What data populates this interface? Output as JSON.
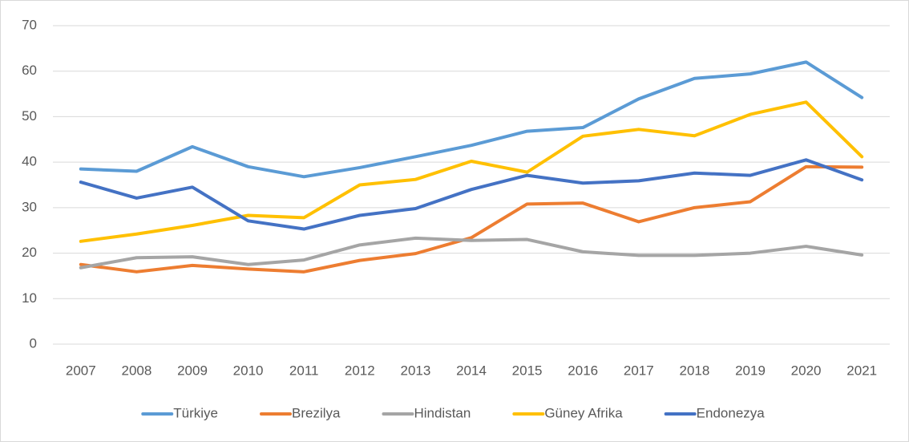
{
  "chart_data": {
    "type": "line",
    "categories": [
      "2007",
      "2008",
      "2009",
      "2010",
      "2011",
      "2012",
      "2013",
      "2014",
      "2015",
      "2016",
      "2017",
      "2018",
      "2019",
      "2020",
      "2021"
    ],
    "series": [
      {
        "name": "Türkiye",
        "color": "#5B9BD5",
        "values": [
          38.5,
          38,
          43.4,
          39,
          36.8,
          38.8,
          41.2,
          43.7,
          46.8,
          47.6,
          53.9,
          58.4,
          59.4,
          62,
          54.2
        ]
      },
      {
        "name": "Brezilya",
        "color": "#ED7D31",
        "values": [
          17.5,
          15.9,
          17.3,
          16.5,
          15.9,
          18.4,
          19.9,
          23.4,
          30.8,
          31,
          26.9,
          30,
          31.3,
          39,
          38.9
        ]
      },
      {
        "name": "Hindistan",
        "color": "#A5A5A5",
        "values": [
          16.8,
          19,
          19.2,
          17.5,
          18.5,
          21.8,
          23.3,
          22.8,
          23,
          20.3,
          19.5,
          19.5,
          20,
          21.5,
          19.6
        ]
      },
      {
        "name": "Güney Afrika",
        "color": "#FFC000",
        "values": [
          22.6,
          24.2,
          26.1,
          28.3,
          27.8,
          35,
          36.2,
          40.2,
          37.8,
          45.7,
          47.2,
          45.8,
          50.5,
          53.2,
          41.2
        ]
      },
      {
        "name": "Endonezya",
        "color": "#4472C4",
        "values": [
          35.6,
          32.1,
          34.5,
          27.1,
          25.3,
          28.3,
          29.8,
          34,
          37.1,
          35.4,
          35.9,
          37.6,
          37.1,
          40.5,
          36.1
        ]
      }
    ],
    "ylim": [
      0,
      70
    ],
    "yticks": [
      0,
      10,
      20,
      30,
      40,
      50,
      60,
      70
    ],
    "grid": true,
    "legend": "bottom"
  }
}
